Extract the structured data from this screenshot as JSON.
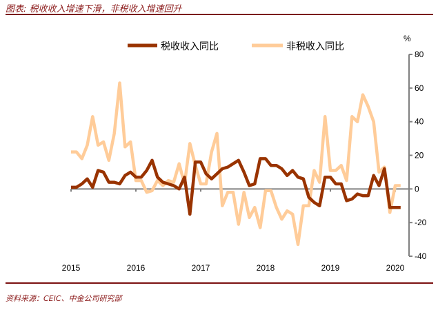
{
  "title": "图表: 税收收入增速下滑，非税收入增速回升",
  "source": "资料来源：CEIC、中金公司研究部",
  "colors": {
    "accent": "#7a1010",
    "tax": "#993300",
    "nontax": "#FFCC99",
    "axis": "#808080"
  },
  "chart_data": {
    "type": "line",
    "title": "",
    "xlabel": "",
    "ylabel": "%",
    "ylim": [
      -40,
      80
    ],
    "yticks": [
      "80",
      "60",
      "40",
      "20",
      "0",
      "-20",
      "-40"
    ],
    "xticks": [
      "2015",
      "2016",
      "2017",
      "2018",
      "2019",
      "2020"
    ],
    "grid": false,
    "y_axis_side": "right",
    "legend_position": "top",
    "x": [
      "2015-01",
      "2015-02",
      "2015-03",
      "2015-04",
      "2015-05",
      "2015-06",
      "2015-07",
      "2015-08",
      "2015-09",
      "2015-10",
      "2015-11",
      "2015-12",
      "2016-01",
      "2016-02",
      "2016-03",
      "2016-04",
      "2016-05",
      "2016-06",
      "2016-07",
      "2016-08",
      "2016-09",
      "2016-10",
      "2016-11",
      "2016-12",
      "2017-01",
      "2017-02",
      "2017-03",
      "2017-04",
      "2017-05",
      "2017-06",
      "2017-07",
      "2017-08",
      "2017-09",
      "2017-10",
      "2017-11",
      "2017-12",
      "2018-01",
      "2018-02",
      "2018-03",
      "2018-04",
      "2018-05",
      "2018-06",
      "2018-07",
      "2018-08",
      "2018-09",
      "2018-10",
      "2018-11",
      "2018-12",
      "2019-01",
      "2019-02",
      "2019-03",
      "2019-04",
      "2019-05",
      "2019-06",
      "2019-07",
      "2019-08",
      "2019-09",
      "2019-10",
      "2019-11",
      "2019-12",
      "2020-01",
      "2020-02"
    ],
    "series": [
      {
        "name": "税收收入同比",
        "values": [
          1,
          1,
          3,
          6,
          1,
          11,
          10,
          4,
          4,
          3,
          8,
          10,
          7,
          7,
          11,
          17,
          7,
          4,
          3,
          2,
          0,
          7,
          -15,
          16,
          16,
          9,
          6,
          9,
          12,
          13,
          15,
          17,
          10,
          2,
          3,
          18,
          18,
          14,
          14,
          12,
          8,
          11,
          7,
          6,
          -5,
          -8,
          -10,
          7,
          7,
          3,
          3,
          -7,
          -6,
          -3,
          -4,
          -4,
          8,
          2,
          12,
          -11,
          -11,
          -11
        ]
      },
      {
        "name": "非税收入同比",
        "values": [
          22,
          22,
          18,
          26,
          43,
          26,
          28,
          17,
          33,
          63,
          25,
          28,
          5,
          5,
          -2,
          -1,
          5,
          2,
          5,
          4,
          15,
          3,
          27,
          14,
          3,
          3,
          22,
          33,
          -10,
          -2,
          -2,
          -21,
          -2,
          -17,
          -11,
          -23,
          -1,
          -1,
          -11,
          -18,
          -13,
          -15,
          -33,
          -10,
          -10,
          11,
          4,
          43,
          11,
          11,
          14,
          5,
          43,
          40,
          56,
          49,
          40,
          10,
          13,
          -14,
          2,
          2
        ]
      }
    ]
  }
}
